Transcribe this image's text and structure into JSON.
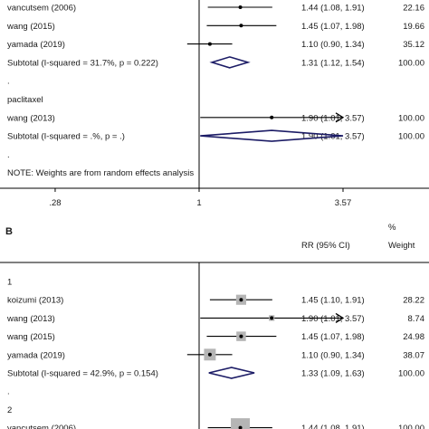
{
  "chart_data": [
    {
      "type": "forest",
      "panel_label": "",
      "header": {
        "effect": "",
        "weight_symbol": "",
        "weight": ""
      },
      "x_ticks": [
        ".28",
        "1",
        "3.57"
      ],
      "x_tick_values": [
        0.28,
        1,
        3.57
      ],
      "null_value": 1,
      "log_scale": true,
      "rows": [
        {
          "kind": "study",
          "label": "vancutsem  (2006)",
          "rr": 1.44,
          "lo": 1.08,
          "hi": 1.91,
          "ci_text": "1.44 (1.08, 1.91)",
          "weight": "22.16",
          "marker": "dot"
        },
        {
          "kind": "study",
          "label": "wang  (2015)",
          "rr": 1.45,
          "lo": 1.07,
          "hi": 1.98,
          "ci_text": "1.45 (1.07, 1.98)",
          "weight": "19.66",
          "marker": "dot"
        },
        {
          "kind": "study",
          "label": "yamada  (2019)",
          "rr": 1.1,
          "lo": 0.9,
          "hi": 1.34,
          "ci_text": "1.10 (0.90, 1.34)",
          "weight": "35.12",
          "marker": "dot"
        },
        {
          "kind": "subtotal",
          "label": "Subtotal  (I-squared = 31.7%, p = 0.222)",
          "rr": 1.31,
          "lo": 1.12,
          "hi": 1.54,
          "ci_text": "1.31 (1.12, 1.54)",
          "weight": "100.00"
        },
        {
          "kind": "text",
          "label": "."
        },
        {
          "kind": "group",
          "label": "paclitaxel"
        },
        {
          "kind": "study",
          "label": "wang  (2013)",
          "rr": 1.9,
          "lo": 1.01,
          "hi": 3.57,
          "ci_text": "1.90 (1.01, 3.57)",
          "weight": "100.00",
          "marker": "dot",
          "arrow_right": true
        },
        {
          "kind": "subtotal",
          "label": "Subtotal  (I-squared = .%, p = .)",
          "rr": 1.9,
          "lo": 1.01,
          "hi": 3.57,
          "ci_text": "1.90 (1.01, 3.57)",
          "weight": "100.00"
        },
        {
          "kind": "text",
          "label": "."
        },
        {
          "kind": "note",
          "label": "NOTE: Weights are from random effects analysis"
        }
      ]
    },
    {
      "type": "forest",
      "panel_label": "B",
      "header": {
        "effect": "RR (95% CI)",
        "weight_symbol": "%",
        "weight": "Weight"
      },
      "null_value": 1,
      "log_scale": true,
      "rows": [
        {
          "kind": "group",
          "label": "1"
        },
        {
          "kind": "study",
          "label": "koizumi  (2013)",
          "rr": 1.45,
          "lo": 1.1,
          "hi": 1.91,
          "ci_text": "1.45 (1.10, 1.91)",
          "weight": "28.22",
          "marker": "box"
        },
        {
          "kind": "study",
          "label": "wang  (2013)",
          "rr": 1.9,
          "lo": 1.01,
          "hi": 3.57,
          "ci_text": "1.90 (1.01, 3.57)",
          "weight": "8.74",
          "marker": "box",
          "arrow_right": true
        },
        {
          "kind": "study",
          "label": "wang  (2015)",
          "rr": 1.45,
          "lo": 1.07,
          "hi": 1.98,
          "ci_text": "1.45 (1.07, 1.98)",
          "weight": "24.98",
          "marker": "box"
        },
        {
          "kind": "study",
          "label": "yamada  (2019)",
          "rr": 1.1,
          "lo": 0.9,
          "hi": 1.34,
          "ci_text": "1.10 (0.90, 1.34)",
          "weight": "38.07",
          "marker": "box"
        },
        {
          "kind": "subtotal",
          "label": "Subtotal  (I-squared = 42.9%, p = 0.154)",
          "rr": 1.33,
          "lo": 1.09,
          "hi": 1.63,
          "ci_text": "1.33 (1.09, 1.63)",
          "weight": "100.00"
        },
        {
          "kind": "text",
          "label": "."
        },
        {
          "kind": "group",
          "label": "2"
        },
        {
          "kind": "study",
          "label": "vancutsem  (2006)",
          "rr": 1.44,
          "lo": 1.08,
          "hi": 1.91,
          "ci_text": "1.44 (1.08, 1.91)",
          "weight": "100.00",
          "marker": "box"
        }
      ]
    }
  ]
}
